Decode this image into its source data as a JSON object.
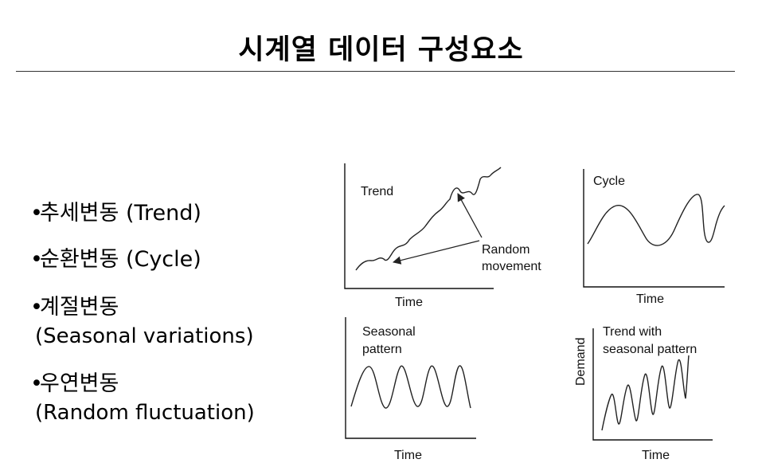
{
  "slide": {
    "title": "시계열 데이터 구성요소"
  },
  "bullets": [
    {
      "main": "추세변동 (Trend)",
      "sub": ""
    },
    {
      "main": "순환변동 (Cycle)",
      "sub": ""
    },
    {
      "main": "계절변동",
      "sub": "(Seasonal variations)"
    },
    {
      "main": "우연변동",
      "sub": "(Random fluctuation)"
    }
  ],
  "bullet_symbol": "•",
  "figures": {
    "trend": {
      "label": "Trend",
      "annotation_line1": "Random",
      "annotation_line2": "movement",
      "xlabel": "Time"
    },
    "cycle": {
      "label": "Cycle",
      "xlabel": "Time"
    },
    "seasonal": {
      "label_line1": "Seasonal",
      "label_line2": "pattern",
      "xlabel": "Time"
    },
    "trend_seasonal": {
      "label_line1": "Trend  with",
      "label_line2": "seasonal pattern",
      "xlabel": "Time",
      "ylabel": "Demand"
    }
  }
}
